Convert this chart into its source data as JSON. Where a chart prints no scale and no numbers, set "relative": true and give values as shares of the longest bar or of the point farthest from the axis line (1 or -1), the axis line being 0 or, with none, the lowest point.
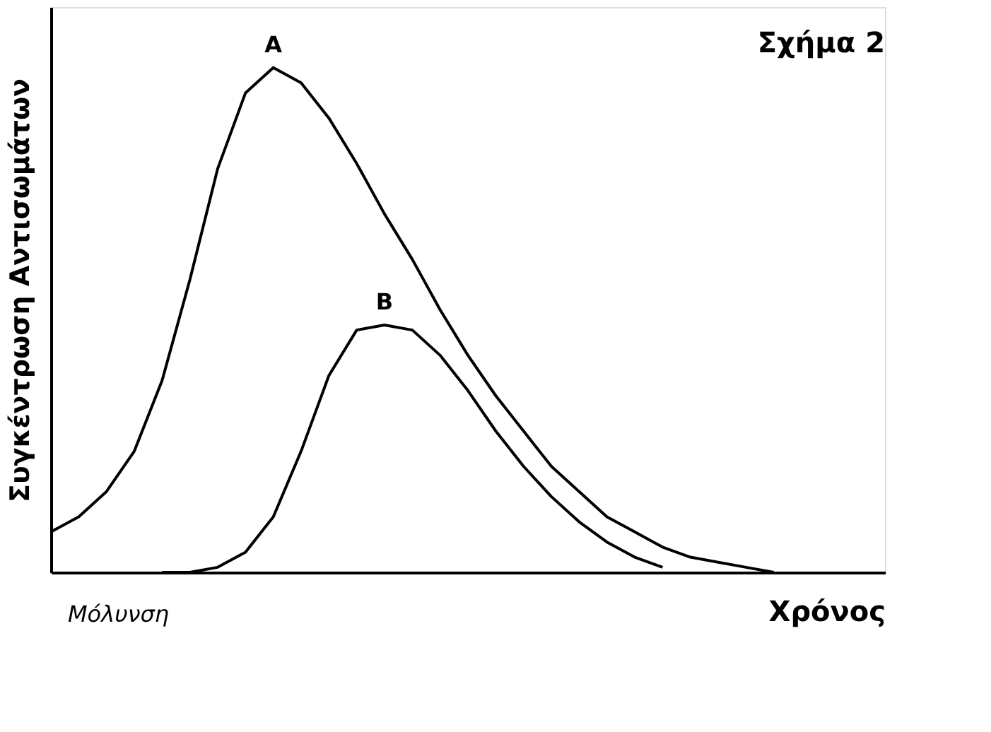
{
  "chart_data": {
    "type": "line",
    "relative": true,
    "title": "Σχήμα 2",
    "xlabel": "Χρόνος",
    "ylabel": "Συγκέντρωση Αντισωμάτων",
    "annotations": [
      "Μόλυνση"
    ],
    "marker": "none",
    "line_style": "solid",
    "legend": false,
    "categories": [
      null,
      null,
      null,
      null,
      null,
      null,
      null,
      null,
      null,
      null,
      null,
      null,
      null,
      null,
      null,
      null,
      null,
      null,
      null,
      null,
      null,
      null,
      null,
      null,
      null,
      null,
      null,
      null,
      null,
      null,
      null
    ],
    "series": [
      {
        "name": "A",
        "color": "#000000",
        "values": [
          0.08,
          0.11,
          0.16,
          0.24,
          0.38,
          0.58,
          0.8,
          0.95,
          1.0,
          0.97,
          0.9,
          0.81,
          0.71,
          0.62,
          0.52,
          0.43,
          0.35,
          0.28,
          0.21,
          0.16,
          0.11,
          0.08,
          0.05,
          0.03,
          0.02,
          0.01,
          0.0,
          null,
          null,
          null,
          null
        ]
      },
      {
        "name": "B",
        "color": "#000000",
        "values": [
          null,
          null,
          null,
          null,
          0.0,
          0.0,
          0.01,
          0.04,
          0.11,
          0.24,
          0.39,
          0.48,
          0.49,
          0.48,
          0.43,
          0.36,
          0.28,
          0.21,
          0.15,
          0.1,
          0.06,
          0.03,
          0.01,
          null,
          null,
          null,
          null,
          null,
          null,
          null,
          null
        ]
      }
    ]
  }
}
